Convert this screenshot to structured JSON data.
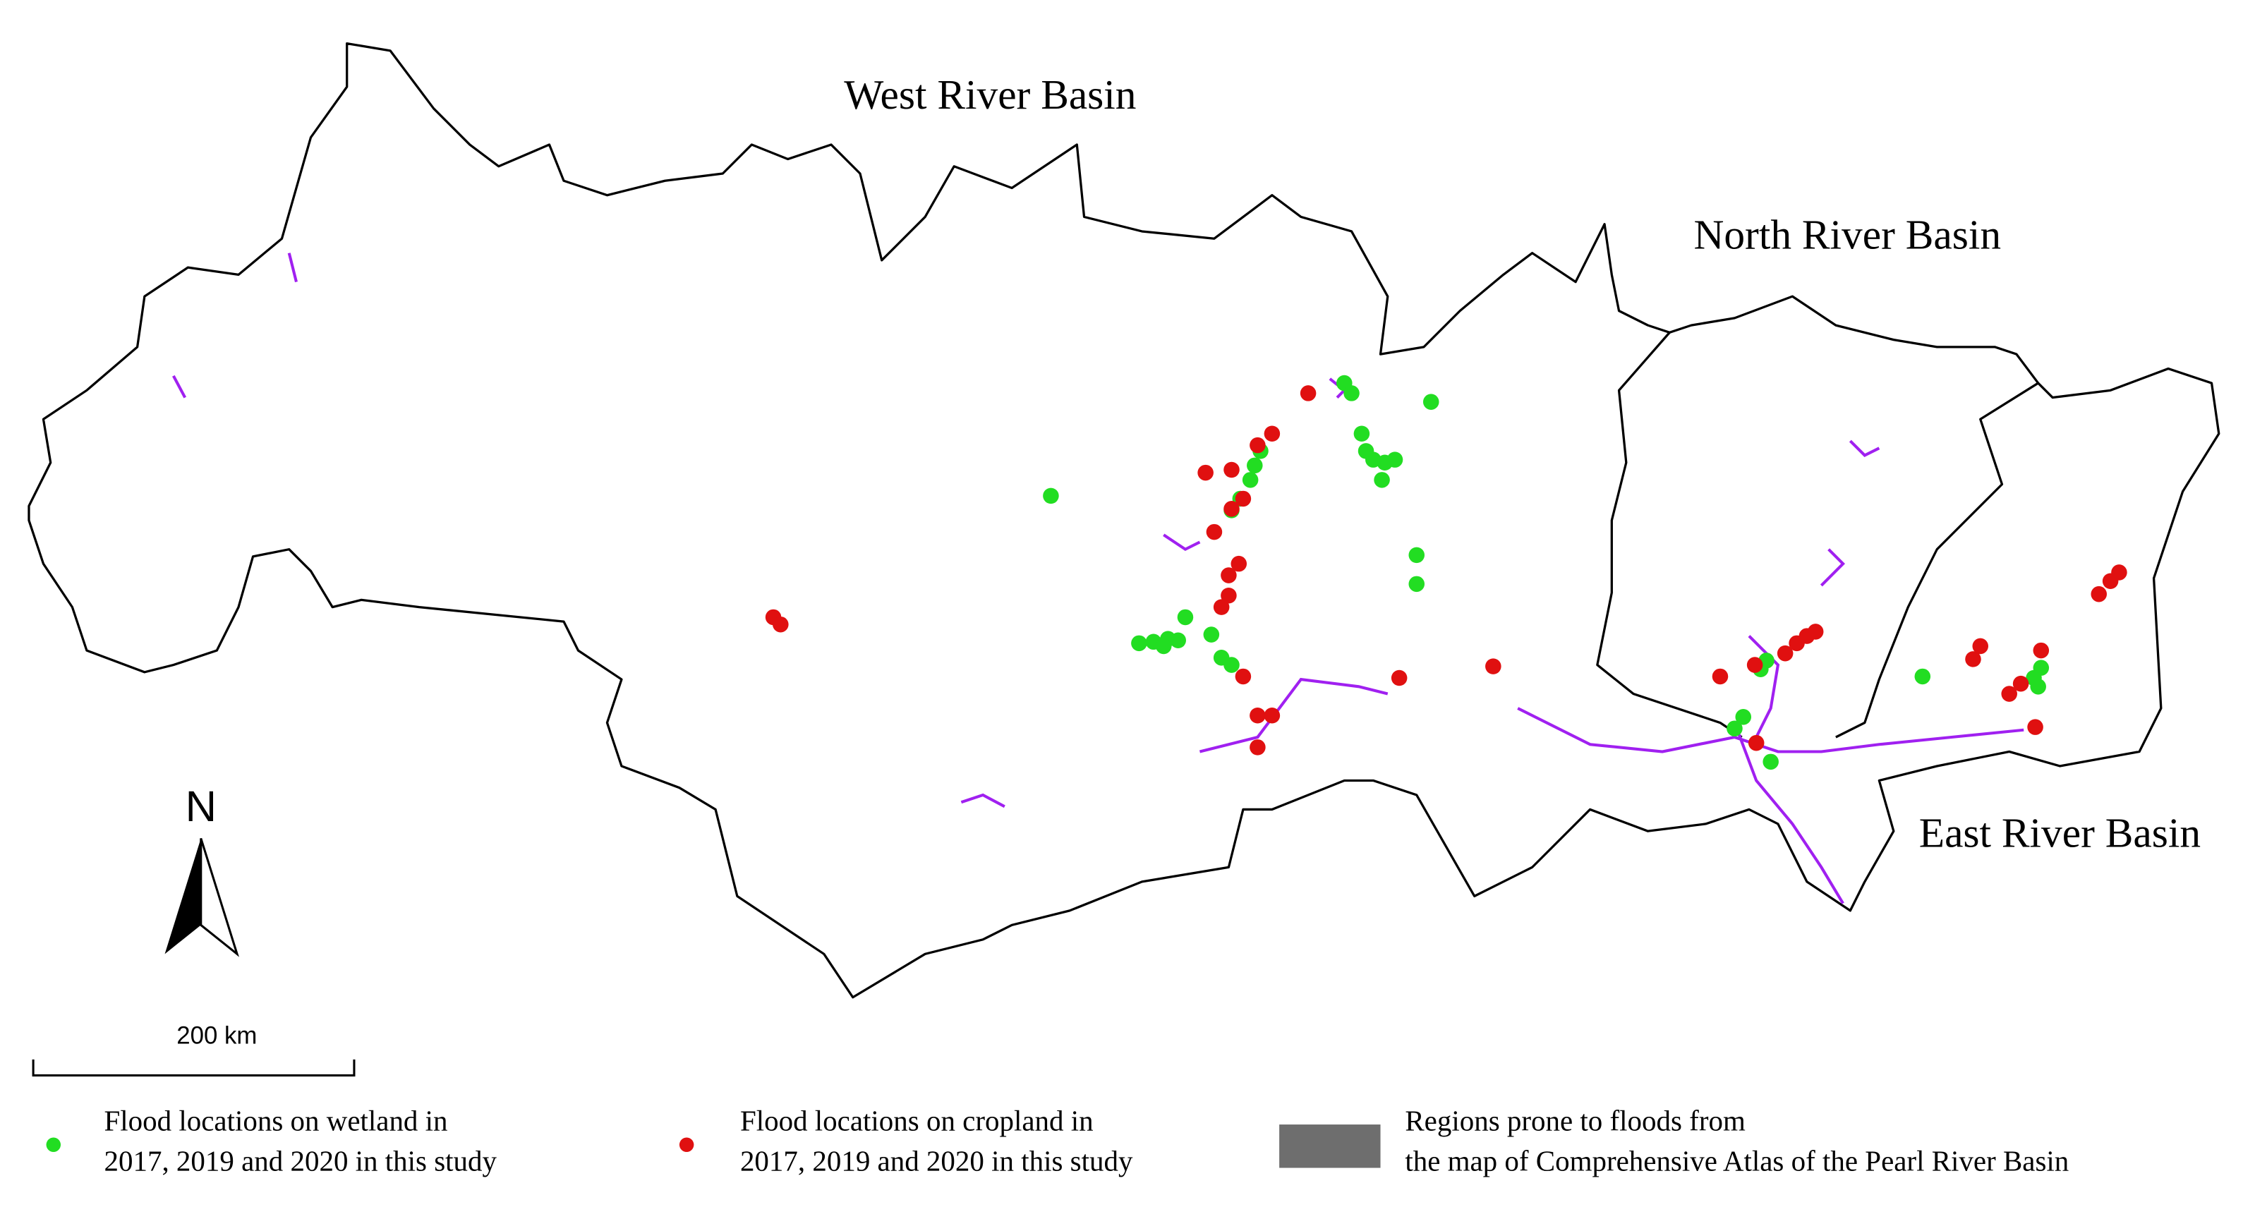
{
  "map": {
    "labels": {
      "west": "West River Basin",
      "north": "North River Basin",
      "east": "East River Basin"
    },
    "north_arrow": "N",
    "scale_bar": "200 km",
    "legend": [
      {
        "lines": [
          "Flood locations on wetland in",
          "2017, 2019 and 2020 in this study"
        ]
      },
      {
        "lines": [
          "Flood locations on cropland in",
          "2017, 2019 and 2020 in this study"
        ]
      },
      {
        "lines": [
          "Regions prone to floods  from",
          "the map of Comprehensive Atlas of the Pearl River Basin"
        ]
      }
    ]
  }
}
